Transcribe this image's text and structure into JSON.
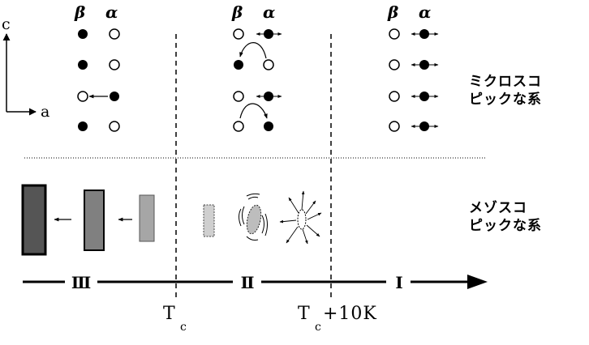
{
  "columns": {
    "left": {
      "beta": "β",
      "alpha": "α"
    },
    "middle": {
      "beta": "β",
      "alpha": "α"
    },
    "right": {
      "beta": "β",
      "alpha": "α"
    }
  },
  "axes": {
    "vertical": "c",
    "horizontal": "a"
  },
  "labels": {
    "micro": [
      "ミクロスコ",
      "ピックな系"
    ],
    "meso": [
      "メゾスコ",
      "ピックな系"
    ]
  },
  "phases": {
    "III": "Ⅲ",
    "II": "Ⅱ",
    "I": "Ⅰ"
  },
  "temperatures": {
    "tc": {
      "main": "T",
      "sub": "c",
      "suffix": ""
    },
    "tc10": {
      "main": "T",
      "sub": "c",
      "suffix": "+10K"
    }
  }
}
